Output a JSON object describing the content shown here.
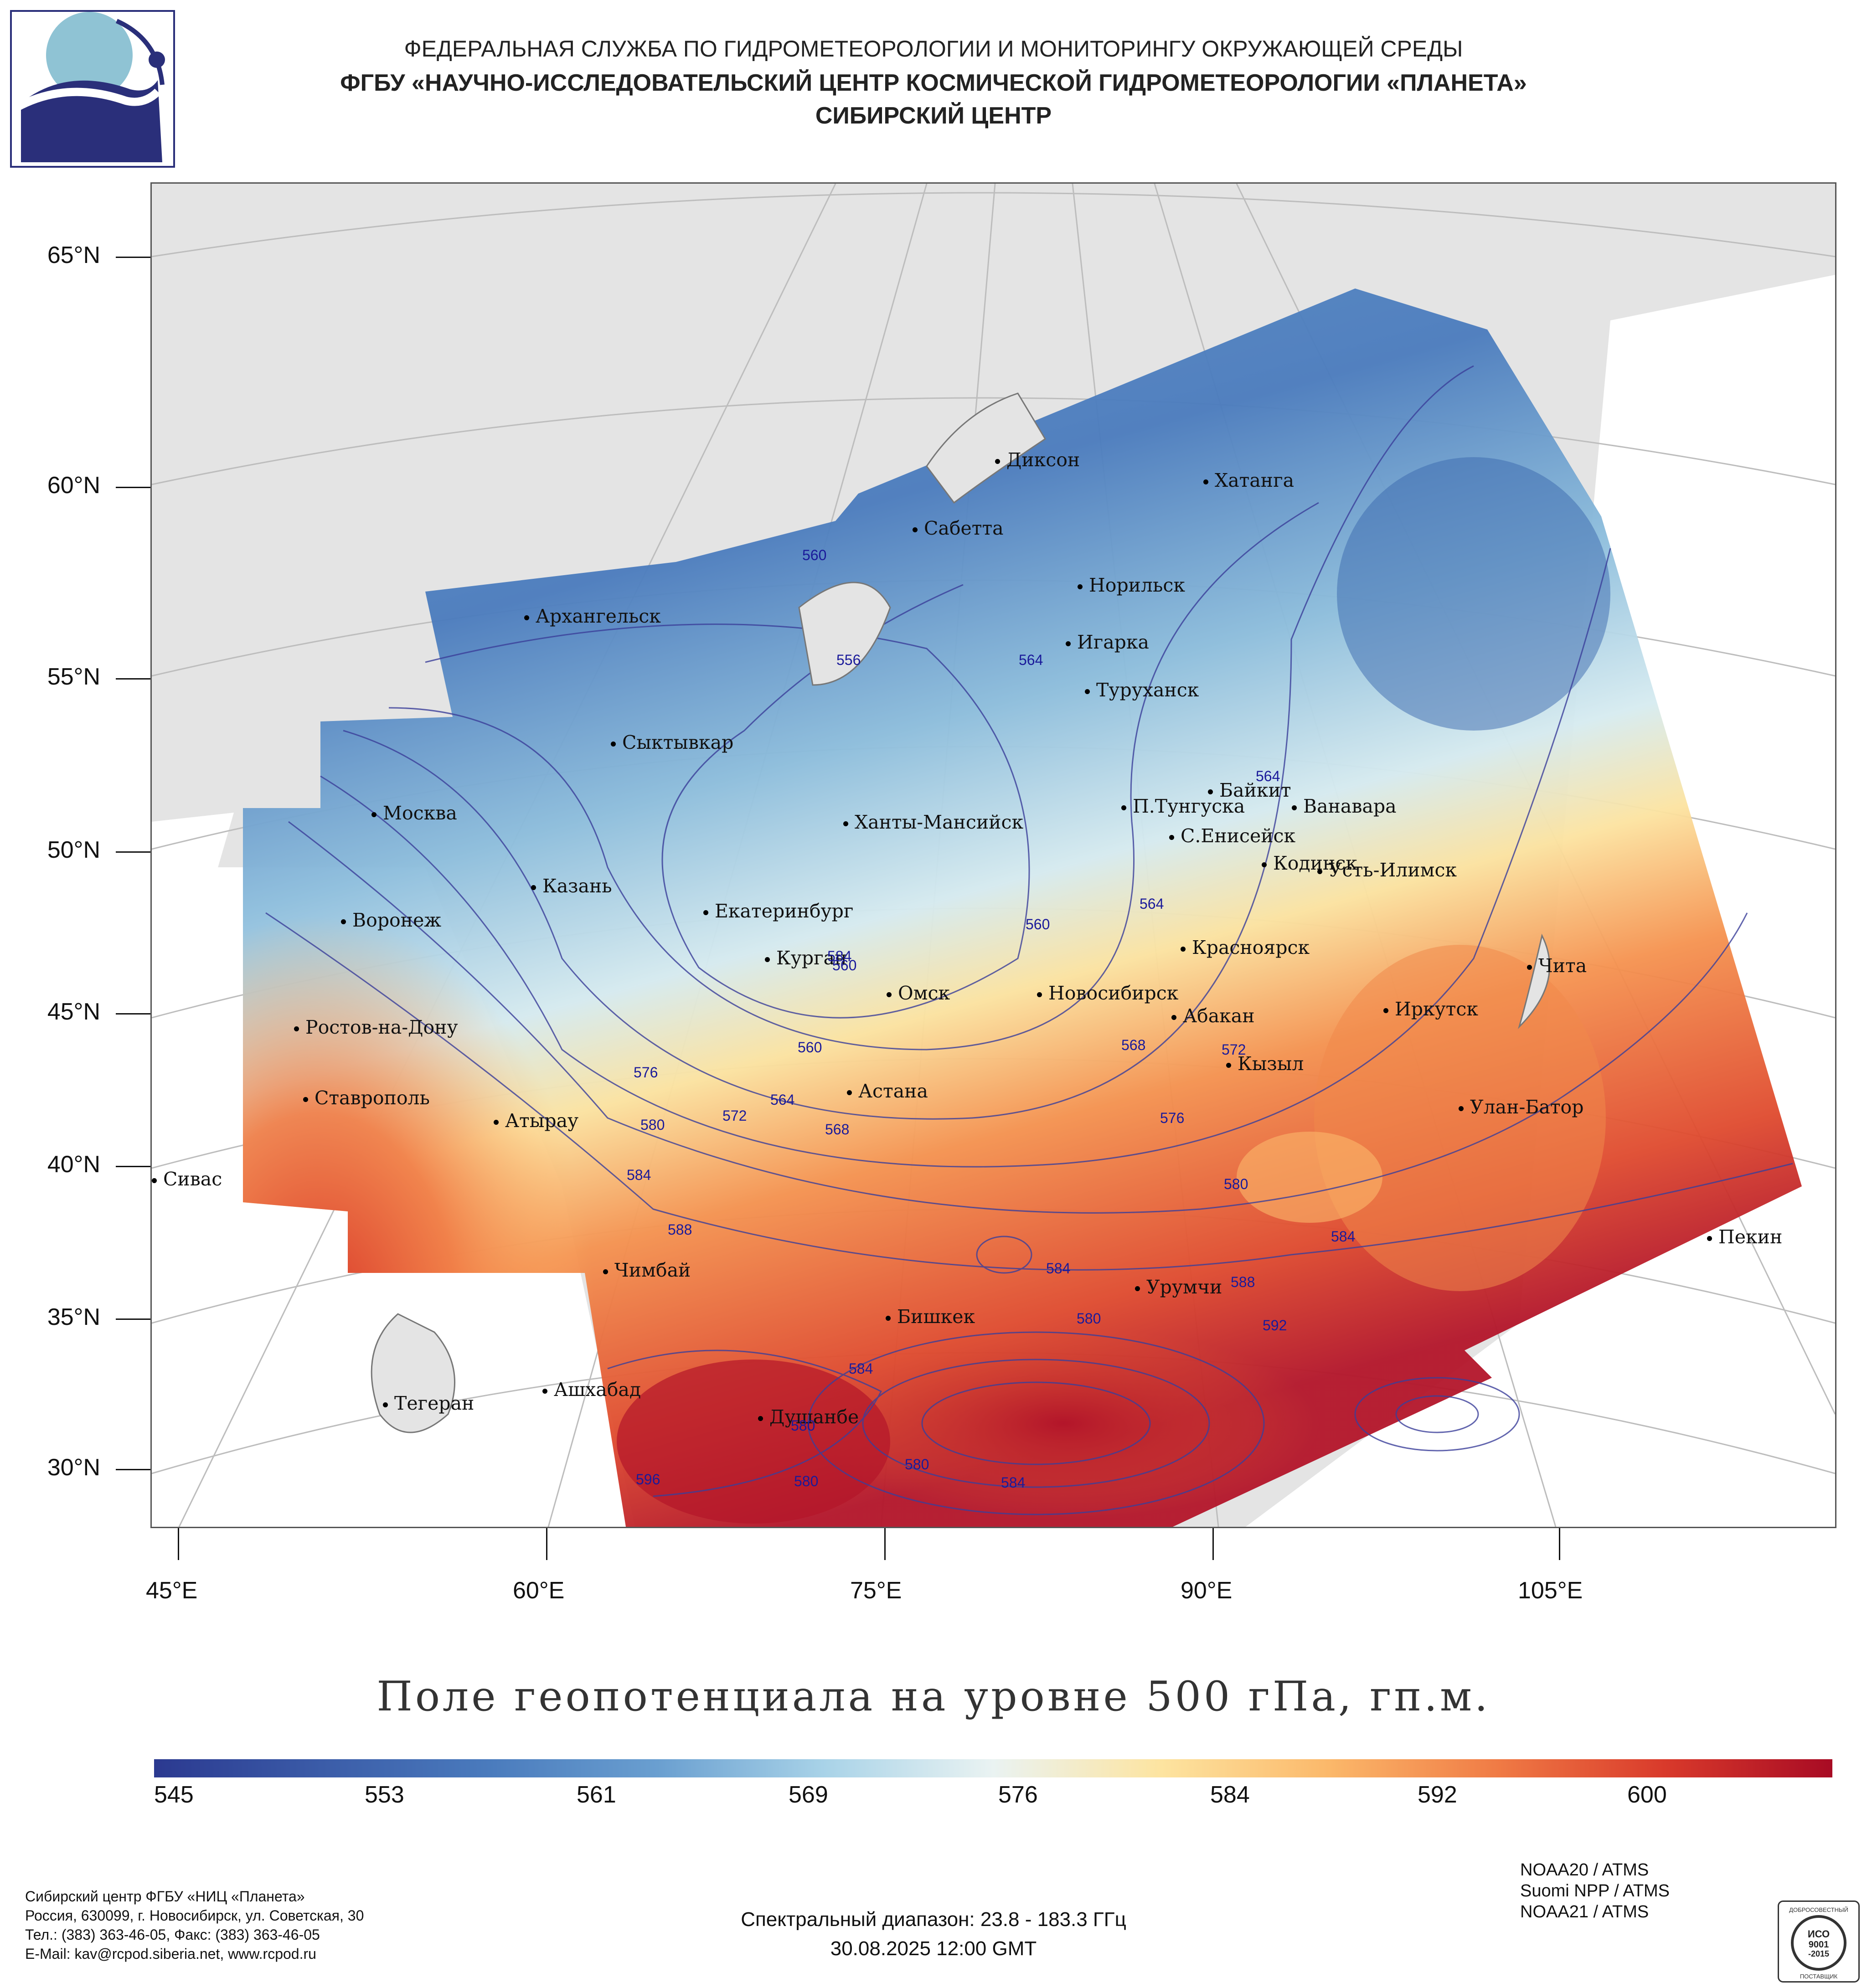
{
  "header": {
    "line1": "ФЕДЕРАЛЬНАЯ СЛУЖБА ПО ГИДРОМЕТЕОРОЛОГИИ И МОНИТОРИНГУ ОКРУЖАЮЩЕЙ СРЕДЫ",
    "line2": "ФГБУ «НАУЧНО-ИССЛЕДОВАТЕЛЬСКИЙ ЦЕНТР КОСМИЧЕСКОЙ ГИДРОМЕТЕОРОЛОГИИ «ПЛАНЕТА»",
    "line3": "СИБИРСКИЙ ЦЕНТР"
  },
  "axes": {
    "lat_labels": [
      "65°N",
      "60°N",
      "55°N",
      "50°N",
      "45°N",
      "40°N",
      "35°N",
      "30°N"
    ],
    "lon_labels": [
      "45°E",
      "60°E",
      "75°E",
      "90°E",
      "105°E"
    ]
  },
  "cities": [
    {
      "name": "Диксон"
    },
    {
      "name": "Хатанга"
    },
    {
      "name": "Сабетта"
    },
    {
      "name": "Архангельск"
    },
    {
      "name": "Норильск"
    },
    {
      "name": "Игарка"
    },
    {
      "name": "Туруханск"
    },
    {
      "name": "Сыктывкар"
    },
    {
      "name": "Байкит"
    },
    {
      "name": "Ванавара"
    },
    {
      "name": "П.Тунгуска"
    },
    {
      "name": "Москва"
    },
    {
      "name": "Ханты-Мансийск"
    },
    {
      "name": "С.Енисейск"
    },
    {
      "name": "Кодинск"
    },
    {
      "name": "Усть-Илимск"
    },
    {
      "name": "Казань"
    },
    {
      "name": "Екатеринбург"
    },
    {
      "name": "Воронеж"
    },
    {
      "name": "Красноярск"
    },
    {
      "name": "Курган"
    },
    {
      "name": "Чита"
    },
    {
      "name": "Омск"
    },
    {
      "name": "Новосибирск"
    },
    {
      "name": "Иркутск"
    },
    {
      "name": "Абакан"
    },
    {
      "name": "Ростов-на-Дону"
    },
    {
      "name": "Кызыл"
    },
    {
      "name": "Астана"
    },
    {
      "name": "Ставрополь"
    },
    {
      "name": "Улан-Батор"
    },
    {
      "name": "Атырау"
    },
    {
      "name": "Сивас"
    },
    {
      "name": "Пекин"
    },
    {
      "name": "Чимбай"
    },
    {
      "name": "Урумчи"
    },
    {
      "name": "Бишкек"
    },
    {
      "name": "Ашхабад"
    },
    {
      "name": "Тегеран"
    },
    {
      "name": "Душанбе"
    }
  ],
  "contour_labels": [
    "560",
    "556",
    "564",
    "564",
    "560",
    "564",
    "560",
    "576",
    "580",
    "584",
    "572",
    "564",
    "568",
    "560",
    "568",
    "572",
    "576",
    "580",
    "584",
    "588",
    "584",
    "580",
    "592",
    "588",
    "584",
    "580",
    "584",
    "596",
    "580",
    "580",
    "584"
  ],
  "title": "Поле геопотенциала на уровне 500 гПа, гп.м.",
  "colorbar": {
    "ticks": [
      "545",
      "553",
      "561",
      "569",
      "576",
      "584",
      "592",
      "600"
    ],
    "colors": [
      "#2b3990",
      "#3b5ca8",
      "#4a7bbd",
      "#6a9fd0",
      "#a9d3e8",
      "#eaf3f2",
      "#fde4a0",
      "#fbb86a",
      "#f07b45",
      "#d93a2b",
      "#a80b24"
    ]
  },
  "footer": {
    "org": "Сибирский центр ФГБУ «НИЦ «Планета»",
    "address": "Россия, 630099, г. Новосибирск, ул. Советская, 30",
    "phone": "Тел.: (383) 363-46-05, Факс: (383) 363-46-05",
    "email": "E-Mail: kav@rcpod.siberia.net, www.rcpod.ru",
    "spectral": "Спектральный диапазон: 23.8 - 183.3 ГГц",
    "datetime": "30.08.2025 12:00 GMT",
    "satellites": [
      "NOAA20 / ATMS",
      "Suomi NPP / ATMS",
      "NOAA21 / ATMS"
    ],
    "iso": [
      "ДОБРОСОВЕСТНЫЙ",
      "ИСО",
      "9001",
      "-2015",
      "ПОСТАВЩИК"
    ]
  }
}
